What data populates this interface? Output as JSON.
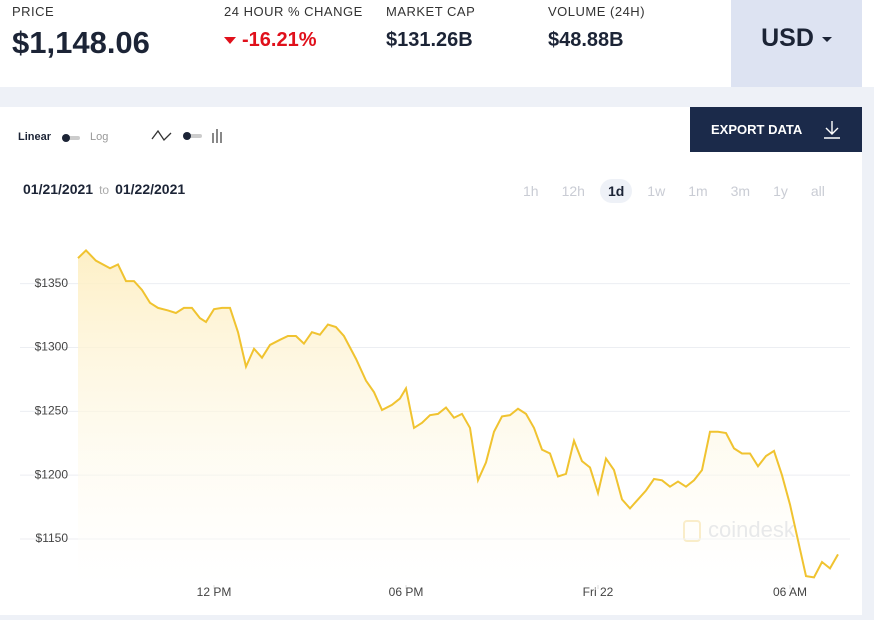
{
  "header": {
    "stats": [
      {
        "label": "PRICE",
        "value": "$1,148.06"
      },
      {
        "label": "24 HOUR % CHANGE",
        "value": "-16.21%"
      },
      {
        "label": "MARKET CAP",
        "value": "$131.26B"
      },
      {
        "label": "VOLUME (24H)",
        "value": "$48.88B"
      }
    ],
    "currency": "USD"
  },
  "toolbar": {
    "linear": "Linear",
    "log": "Log",
    "export": "EXPORT DATA",
    "date_from": "01/21/2021",
    "date_sep": "to",
    "date_to": "01/22/2021",
    "ranges": [
      "1h",
      "12h",
      "1d",
      "1w",
      "1m",
      "3m",
      "1y",
      "all"
    ],
    "active_range": "1d",
    "watermark": "coindesk"
  },
  "chart_data": {
    "type": "area",
    "color": "#f0c330",
    "x": [
      7.75,
      8,
      8.31,
      8.75,
      9,
      9.25,
      9.5,
      9.75,
      10,
      10.25,
      10.56,
      10.81,
      11.06,
      11.31,
      11.56,
      11.75,
      12,
      12.25,
      12.5,
      12.75,
      13,
      13.25,
      13.5,
      13.75,
      14.06,
      14.31,
      14.56,
      14.81,
      15.06,
      15.31,
      15.56,
      15.81,
      16.06,
      16.44,
      16.75,
      17,
      17.25,
      17.56,
      17.81,
      18,
      18.25,
      18.5,
      18.75,
      19,
      19.25,
      19.5,
      19.75,
      20,
      20.25,
      20.5,
      20.75,
      21,
      21.25,
      21.5,
      21.75,
      22,
      22.25,
      22.5,
      22.75,
      23,
      23.25,
      23.5,
      23.75,
      24,
      24.25,
      24.5,
      24.75,
      25,
      25.25,
      25.5,
      25.75,
      26,
      26.25,
      26.5,
      26.75,
      27,
      27.25,
      27.5,
      27.75,
      28,
      28.25,
      28.5,
      28.75,
      29,
      29.25,
      29.5,
      29.75,
      30,
      30.25,
      30.5,
      30.75,
      31,
      31.25,
      31.5
    ],
    "values": [
      1370,
      1376,
      1368,
      1362,
      1365,
      1352,
      1352,
      1345,
      1335,
      1331,
      1329,
      1327,
      1331,
      1331,
      1323,
      1320,
      1330,
      1331,
      1331,
      1312,
      1285,
      1299,
      1292,
      1302,
      1306,
      1309,
      1309,
      1303,
      1312,
      1310,
      1318,
      1316,
      1309,
      1291,
      1274,
      1265,
      1251,
      1255,
      1260,
      1268,
      1237,
      1241,
      1247,
      1248,
      1253,
      1245,
      1248,
      1237,
      1196,
      1210,
      1234,
      1246,
      1247,
      1252,
      1248,
      1237,
      1220,
      1217,
      1199,
      1201,
      1227,
      1211,
      1206,
      1186,
      1213,
      1204,
      1181,
      1174,
      1181,
      1188,
      1197,
      1196,
      1191,
      1195,
      1191,
      1196,
      1204,
      1234,
      1234,
      1233,
      1221,
      1217,
      1217,
      1207,
      1215,
      1219,
      1200,
      1177,
      1149,
      1121,
      1120,
      1132,
      1127,
      1138
    ],
    "xlim": [
      7.75,
      31.5
    ],
    "ylim": [
      1114,
      1392
    ],
    "yticks": [
      {
        "value": 1150,
        "label": "$1150"
      },
      {
        "value": 1200,
        "label": "$1200"
      },
      {
        "value": 1250,
        "label": "$1250"
      },
      {
        "value": 1300,
        "label": "$1300"
      },
      {
        "value": 1350,
        "label": "$1350"
      }
    ],
    "xticks": [
      {
        "value": 12,
        "label": "12 PM"
      },
      {
        "value": 18,
        "label": "06 PM"
      },
      {
        "value": 24,
        "label": "Fri 22"
      },
      {
        "value": 30,
        "label": "06 AM"
      }
    ],
    "grid": true
  }
}
